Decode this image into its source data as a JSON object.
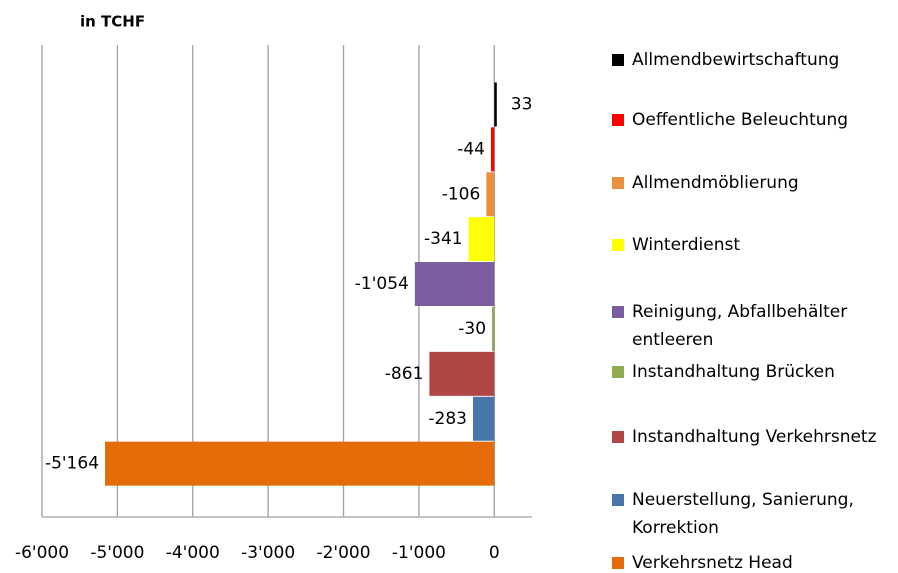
{
  "chart_data": {
    "type": "bar",
    "orientation": "horizontal",
    "title": "in TCHF",
    "categories": [
      "Allmendbewirtschaftung",
      "Oeffentliche Beleuchtung",
      "Allmendmöblierung",
      "Winterdienst",
      "Reinigung, Abfallbehälter entleeren",
      "Instandhaltung Brücken",
      "Instandhaltung Verkehrsnetz",
      "Neuerstellung, Sanierung, Korrektion",
      "Verkehrsnetz Head"
    ],
    "values": [
      33,
      -44,
      -106,
      -341,
      -1054,
      -30,
      -861,
      -283,
      -5164
    ],
    "value_labels": [
      "33",
      "-44",
      "-106",
      "-341",
      "-1'054",
      "-30",
      "-861",
      "-283",
      "-5'164"
    ],
    "colors": [
      "#000000",
      "#ff0000",
      "#e8913f",
      "#ffff00",
      "#7b5c9e",
      "#8fab4f",
      "#b04645",
      "#4a74ac",
      "#e36c09"
    ],
    "xlim": [
      -6000,
      500
    ],
    "xticks": [
      {
        "value": -6000,
        "label": "-6'000"
      },
      {
        "value": -5000,
        "label": "-5'000"
      },
      {
        "value": -4000,
        "label": "-4'000"
      },
      {
        "value": -3000,
        "label": "-3'000"
      },
      {
        "value": -2000,
        "label": "-2'000"
      },
      {
        "value": -1000,
        "label": "-1'000"
      },
      0
    ],
    "grid": true,
    "legend": "right"
  }
}
